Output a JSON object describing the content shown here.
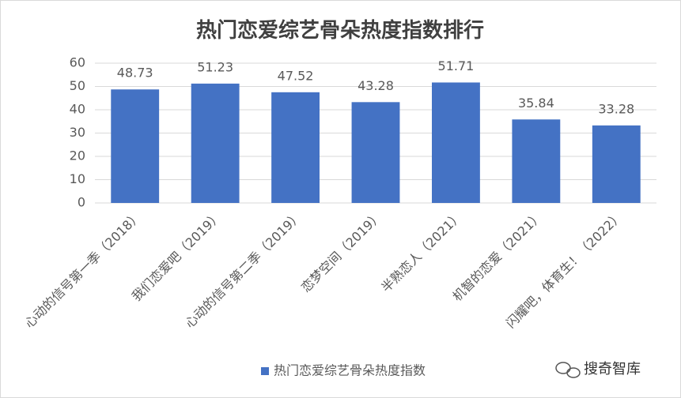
{
  "chart_data": {
    "type": "bar",
    "title": "热门恋爱综艺骨朵热度指数排行",
    "categories": [
      "心动的信号第一季（2018）",
      "我们恋爱吧（2019）",
      "心动的信号第二季（2019）",
      "恋梦空间（2019）",
      "半熟恋人（2021）",
      "机智的恋爱（2021）",
      "闪耀吧，体育生！（2022）"
    ],
    "series": [
      {
        "name": "热门恋爱综艺骨朵热度指数",
        "color": "#4472c4",
        "values": [
          48.73,
          51.23,
          47.52,
          43.28,
          51.71,
          35.84,
          33.28
        ]
      }
    ],
    "ylim": [
      0,
      60
    ],
    "yticks": [
      0,
      10,
      20,
      30,
      40,
      50,
      60
    ],
    "grid": true,
    "legend": "bottom"
  },
  "watermark": "搜奇智库"
}
